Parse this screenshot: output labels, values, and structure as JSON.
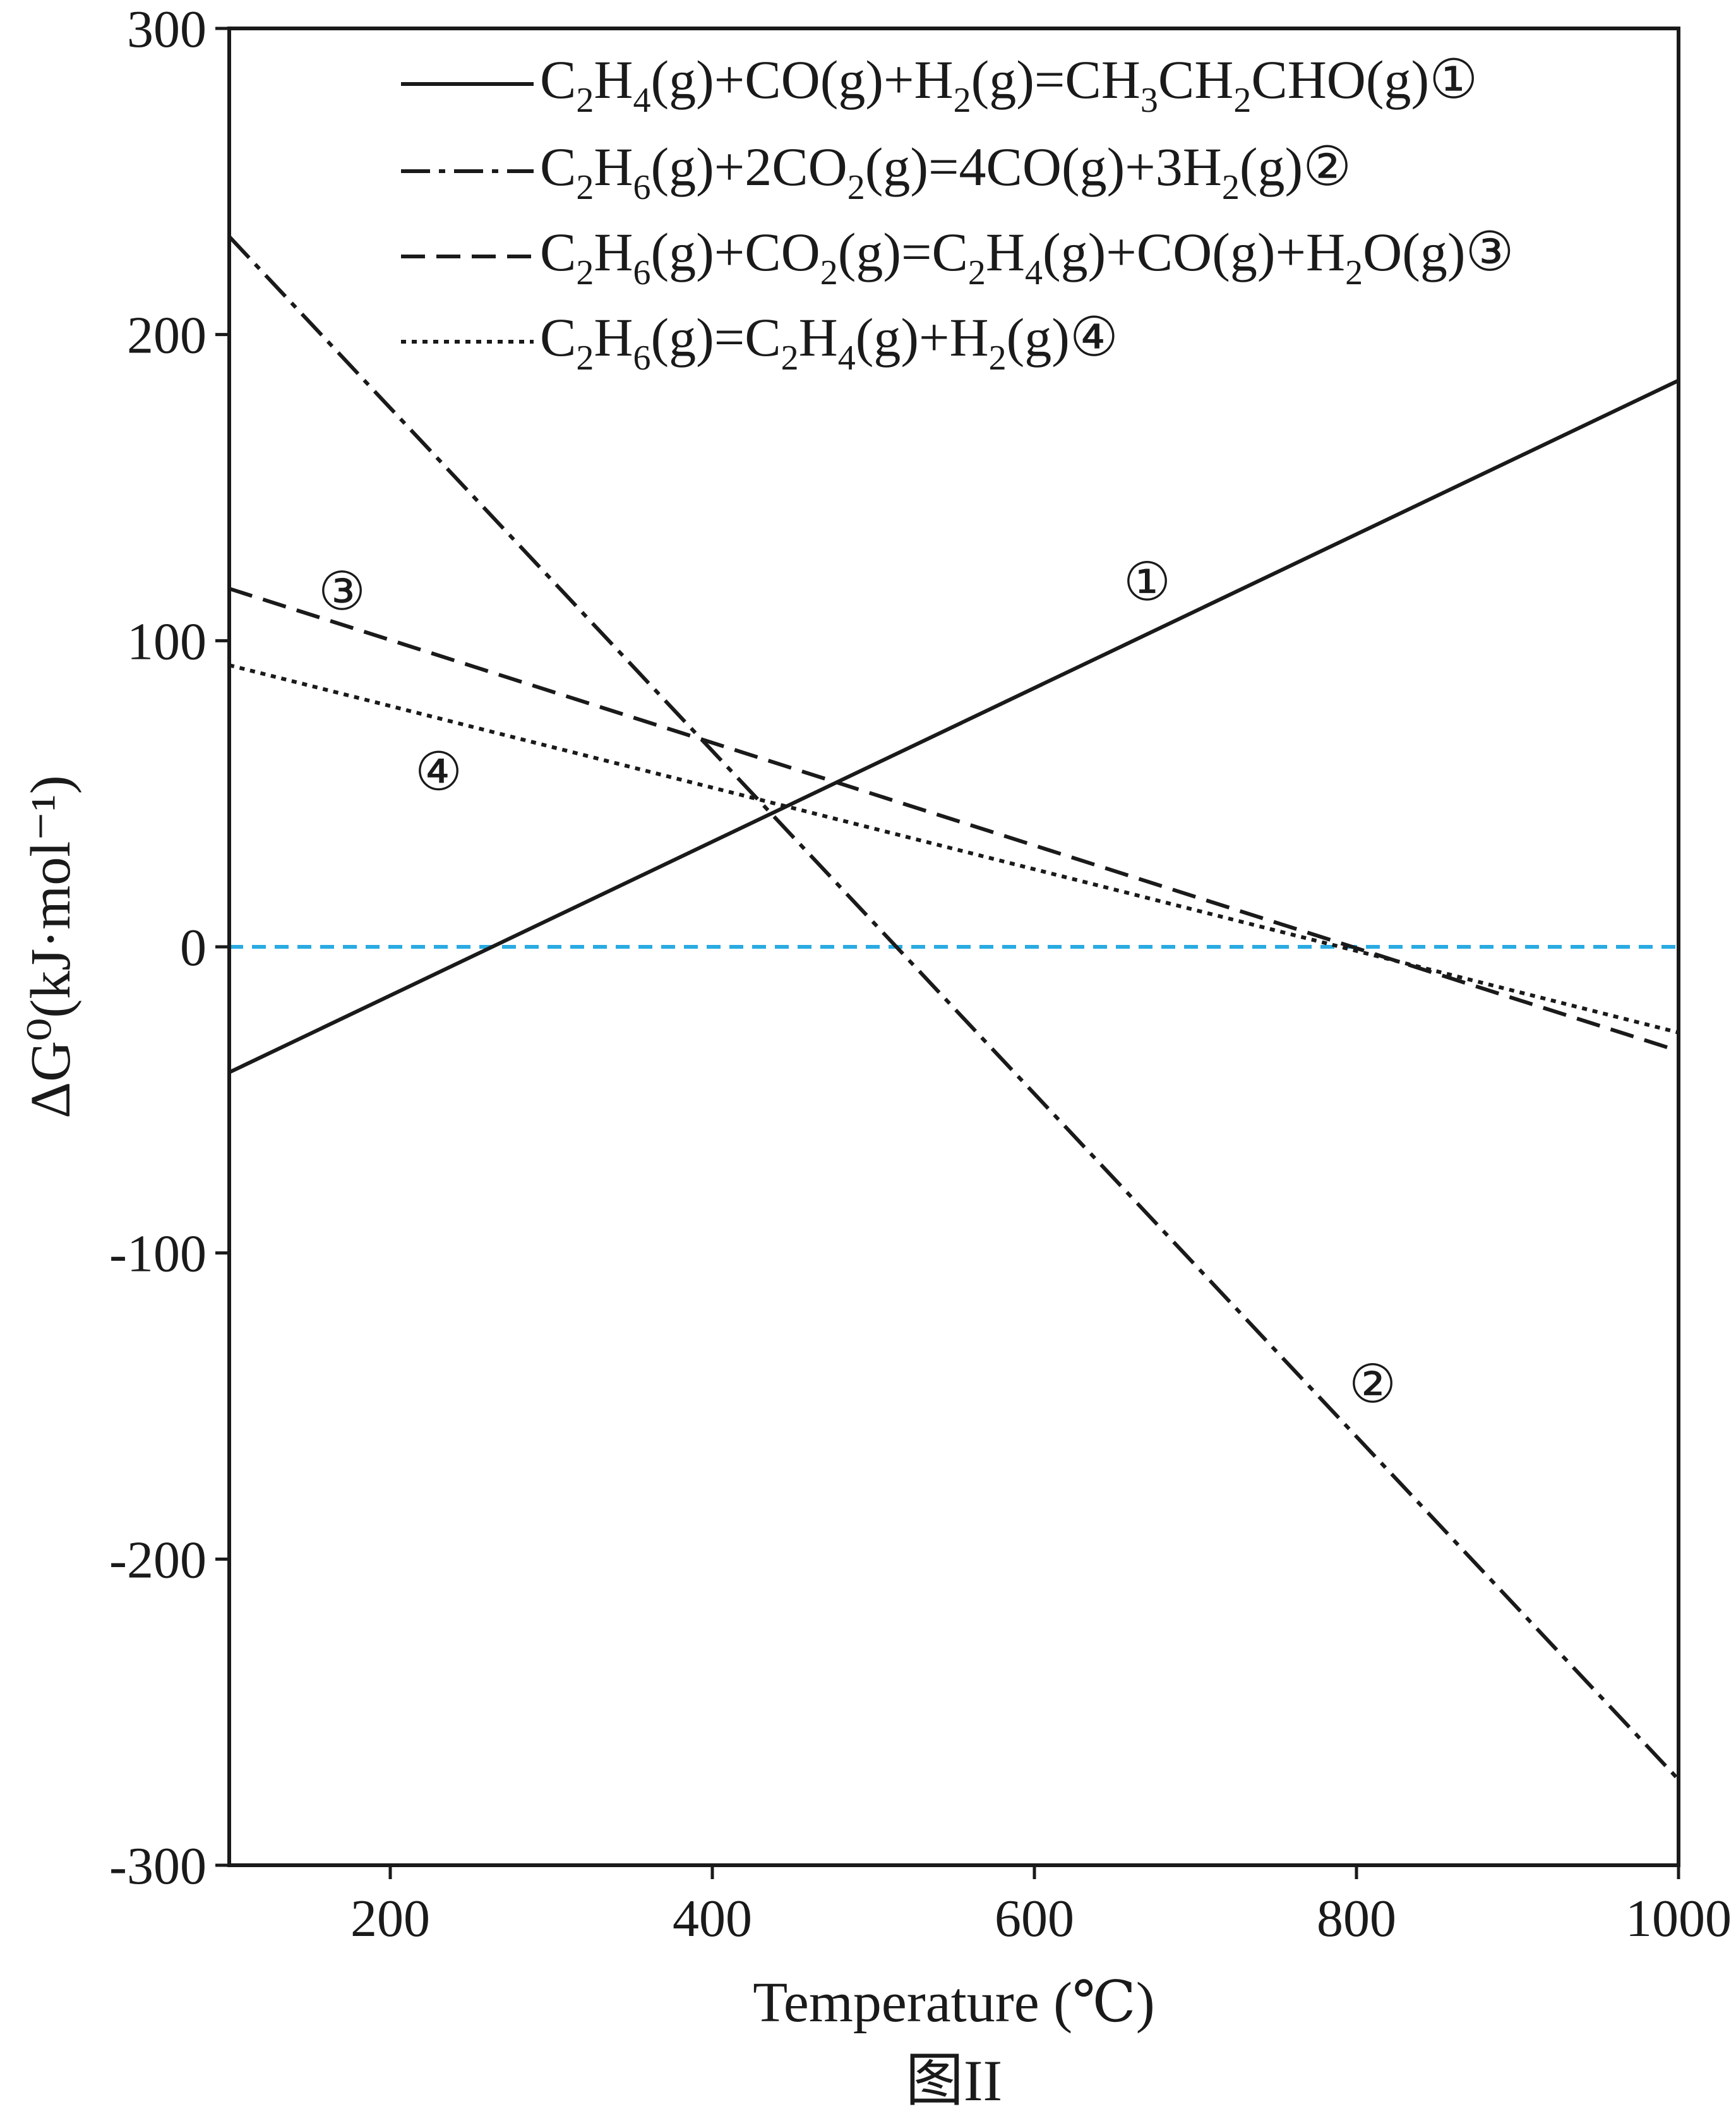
{
  "chart_data": {
    "type": "line",
    "xlabel": "Temperature (℃)",
    "ylabel": "ΔG⁰(kJ·mol⁻¹)",
    "caption": "图II",
    "xlim": [
      100,
      1000
    ],
    "ylim": [
      -300,
      300
    ],
    "x_ticks": [
      "200",
      "400",
      "600",
      "800",
      "1000"
    ],
    "y_ticks": [
      "300",
      "200",
      "100",
      "0",
      "-100",
      "-200",
      "-300"
    ],
    "grid": false,
    "legend_position": "top-right",
    "zero_line_color": "#29abe2",
    "series": [
      {
        "id": "1",
        "legend": "C₂H₄(g)+CO(g)+H₂(g)=CH₃CH₂CHO(g)①",
        "marker": "①",
        "dash": "solid",
        "x": [
          100,
          1000
        ],
        "y": [
          -41,
          185
        ]
      },
      {
        "id": "2",
        "legend": "C₂H₆(g)+2CO₂(g)=4CO(g)+3H₂(g)②",
        "marker": "②",
        "dash": "dashdot",
        "x": [
          100,
          1000
        ],
        "y": [
          232,
          -272
        ]
      },
      {
        "id": "3",
        "legend": "C₂H₆(g)+CO₂(g)=C₂H₄(g)+CO(g)+H₂O(g)③",
        "marker": "③",
        "dash": "dashed",
        "x": [
          100,
          1000
        ],
        "y": [
          117,
          -34
        ]
      },
      {
        "id": "4",
        "legend": "C₂H₆(g)=C₂H₄(g)+H₂(g)④",
        "marker": "④",
        "dash": "dotted",
        "x": [
          100,
          1000
        ],
        "y": [
          92,
          -28
        ]
      }
    ],
    "annotations": [
      {
        "text": "①",
        "x": 670,
        "y": 119
      },
      {
        "text": "②",
        "x": 810,
        "y": -143
      },
      {
        "text": "③",
        "x": 170,
        "y": 116
      },
      {
        "text": "④",
        "x": 230,
        "y": 57
      }
    ]
  }
}
